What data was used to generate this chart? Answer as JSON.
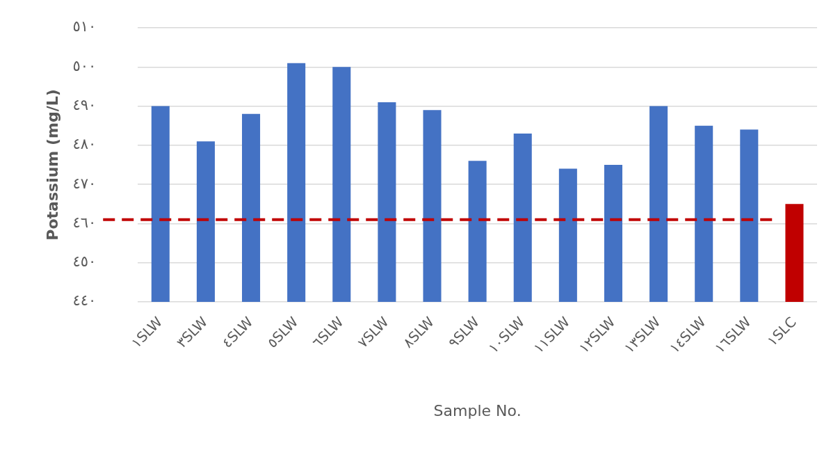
{
  "chart_data": {
    "type": "bar",
    "categories": [
      "١SLW",
      "٣SLW",
      "٤SLW",
      "٥SLW",
      "٦SLW",
      "٧SLW",
      "٨SLW",
      "٩SLW",
      "١٠SLW",
      "١١SLW",
      "١٢SLW",
      "١٣SLW",
      "١٤SLW",
      "١٦SLW",
      "١SLC"
    ],
    "values": [
      490,
      481,
      488,
      501,
      500,
      491,
      489,
      476,
      483,
      474,
      475,
      490,
      485,
      484,
      465
    ],
    "colors": [
      "#4472c4",
      "#4472c4",
      "#4472c4",
      "#4472c4",
      "#4472c4",
      "#4472c4",
      "#4472c4",
      "#4472c4",
      "#4472c4",
      "#4472c4",
      "#4472c4",
      "#4472c4",
      "#4472c4",
      "#4472c4",
      "#c00000"
    ],
    "xlabel": "Sample No.",
    "ylabel": "Potassium (mg/L)",
    "ylim": [
      440,
      510
    ],
    "yticks": [
      {
        "value": 440,
        "label": "٤٤٠"
      },
      {
        "value": 450,
        "label": "٤٥٠"
      },
      {
        "value": 460,
        "label": "٤٦٠"
      },
      {
        "value": 470,
        "label": "٤٧٠"
      },
      {
        "value": 480,
        "label": "٤٨٠"
      },
      {
        "value": 490,
        "label": "٤٩٠"
      },
      {
        "value": 500,
        "label": "٥٠٠"
      },
      {
        "value": 510,
        "label": "٥١٠"
      }
    ],
    "ref_lines": [
      {
        "axis": "y",
        "value": 461,
        "color": "#c00000",
        "line_style": "dashed"
      }
    ],
    "grid": "y",
    "legend": false
  }
}
